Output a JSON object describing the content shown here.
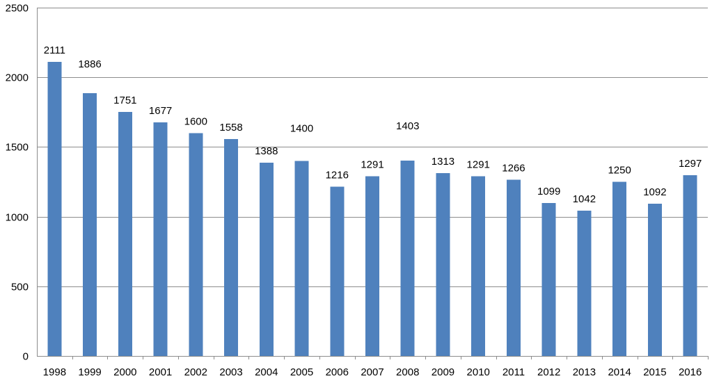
{
  "chart_data": {
    "type": "bar",
    "categories": [
      "1998",
      "1999",
      "2000",
      "2001",
      "2002",
      "2003",
      "2004",
      "2005",
      "2006",
      "2007",
      "2008",
      "2009",
      "2010",
      "2011",
      "2012",
      "2013",
      "2014",
      "2015",
      "2016"
    ],
    "values": [
      2111,
      1886,
      1751,
      1677,
      1600,
      1558,
      1388,
      1400,
      1216,
      1291,
      1403,
      1313,
      1291,
      1266,
      1099,
      1042,
      1250,
      1092,
      1297
    ],
    "value_labels": [
      "2111",
      "1886",
      "1751",
      "1677",
      "1600",
      "1558",
      "1388",
      "1400",
      "1216",
      "1291",
      "1403",
      "1313",
      "1291",
      "1266",
      "1099",
      "1042",
      "1250",
      "1092",
      "1297"
    ],
    "title": "",
    "xlabel": "",
    "ylabel": "",
    "ylim": [
      0,
      2500
    ],
    "yticks": [
      "0",
      "500",
      "1000",
      "1500",
      "2000",
      "2500"
    ],
    "grid": true,
    "bar_color": "#4f81bd",
    "grid_color": "#8c8c8c"
  }
}
